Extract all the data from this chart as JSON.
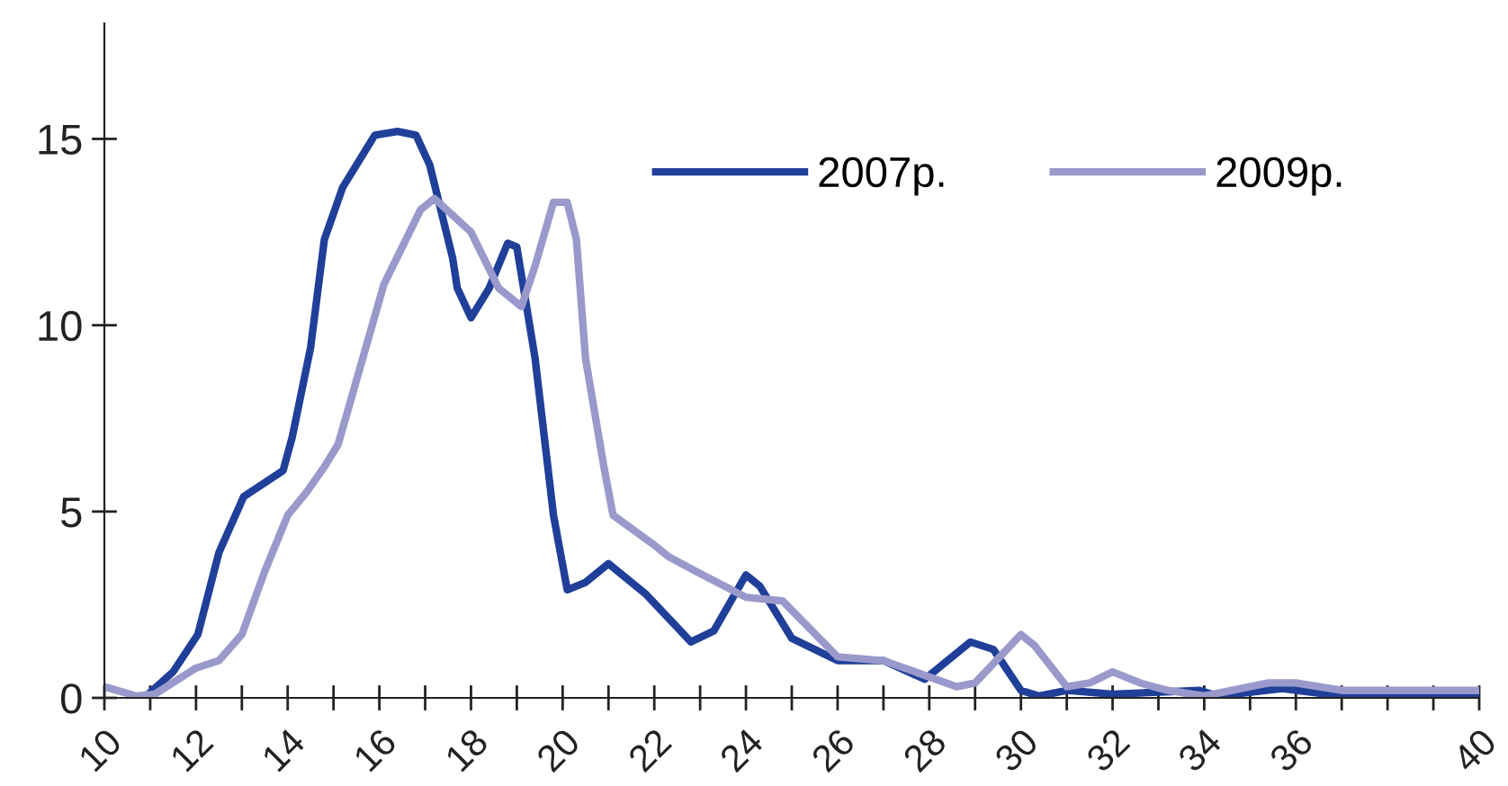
{
  "chart_data": {
    "type": "line",
    "xlim": [
      10,
      40
    ],
    "ylim": [
      0,
      18.1
    ],
    "yticks": [
      0,
      5,
      10,
      15
    ],
    "xticks": [
      10,
      {
        "value": 11,
        "label": null
      },
      12,
      {
        "value": 13,
        "label": null
      },
      14,
      {
        "value": 15,
        "label": null
      },
      16,
      {
        "value": 17,
        "label": null
      },
      18,
      {
        "value": 19,
        "label": null
      },
      20,
      {
        "value": 21,
        "label": null
      },
      22,
      {
        "value": 23,
        "label": null
      },
      24,
      {
        "value": 25,
        "label": null
      },
      26,
      {
        "value": 27,
        "label": null
      },
      28,
      {
        "value": 29,
        "label": null
      },
      30,
      {
        "value": 31,
        "label": null
      },
      32,
      {
        "value": 33,
        "label": null
      },
      34,
      {
        "value": 35,
        "label": null
      },
      36,
      {
        "value": 37,
        "label": null
      },
      {
        "value": 38,
        "label": null
      },
      {
        "value": 39,
        "label": null
      },
      40
    ],
    "grid": false,
    "legend": "top right",
    "marker": "none",
    "line_style": "solid",
    "series": [
      {
        "name": "2007р.",
        "color": "#1f3f99",
        "x": [
          10.96,
          11.5,
          12.04,
          12.5,
          13.04,
          13.9,
          14.1,
          14.5,
          14.8,
          15.2,
          15.9,
          16.4,
          16.8,
          17.1,
          17.6,
          17.7,
          18.0,
          18.4,
          18.8,
          19.0,
          19.4,
          19.8,
          20.1,
          20.5,
          21.0,
          21.8,
          22.8,
          23.3,
          24.0,
          24.3,
          25.0,
          26.0,
          27.0,
          27.9,
          28.9,
          29.4,
          30.0,
          30.4,
          31.0,
          32.0,
          33.9,
          34.3,
          35.7,
          37.0,
          40.0
        ],
        "values": [
          0.1,
          0.7,
          1.7,
          3.9,
          5.4,
          6.1,
          7.0,
          9.4,
          12.3,
          13.7,
          15.1,
          15.2,
          15.1,
          14.3,
          11.8,
          11.0,
          10.2,
          11.0,
          12.2,
          12.1,
          9.1,
          4.9,
          2.9,
          3.1,
          3.6,
          2.8,
          1.5,
          1.8,
          3.3,
          3.0,
          1.6,
          1.0,
          1.0,
          0.5,
          1.5,
          1.3,
          0.2,
          0.05,
          0.2,
          0.1,
          0.2,
          0.05,
          0.25,
          0.05,
          0.05
        ]
      },
      {
        "name": "2009р.",
        "color": "#9999cc",
        "x": [
          10.0,
          10.7,
          11.1,
          12.0,
          12.5,
          13.0,
          13.5,
          14.0,
          14.4,
          14.8,
          15.1,
          16.1,
          16.9,
          17.2,
          18.0,
          18.6,
          19.1,
          19.4,
          19.8,
          20.1,
          20.3,
          20.5,
          20.9,
          21.1,
          22.0,
          22.3,
          22.9,
          24.0,
          24.8,
          26.0,
          27.0,
          28.6,
          29.0,
          30.0,
          30.3,
          31.0,
          31.5,
          32.0,
          32.6,
          33.2,
          34.0,
          35.4,
          36.0,
          37.0,
          40.0
        ],
        "values": [
          0.3,
          0.05,
          0.1,
          0.8,
          1.0,
          1.7,
          3.4,
          4.9,
          5.5,
          6.2,
          6.8,
          11.1,
          13.1,
          13.4,
          12.5,
          11.0,
          10.5,
          11.6,
          13.3,
          13.3,
          12.3,
          9.1,
          6.2,
          4.9,
          4.1,
          3.8,
          3.4,
          2.7,
          2.6,
          1.1,
          1.0,
          0.3,
          0.4,
          1.7,
          1.4,
          0.3,
          0.4,
          0.7,
          0.4,
          0.2,
          0.05,
          0.4,
          0.4,
          0.2,
          0.2
        ]
      }
    ]
  }
}
